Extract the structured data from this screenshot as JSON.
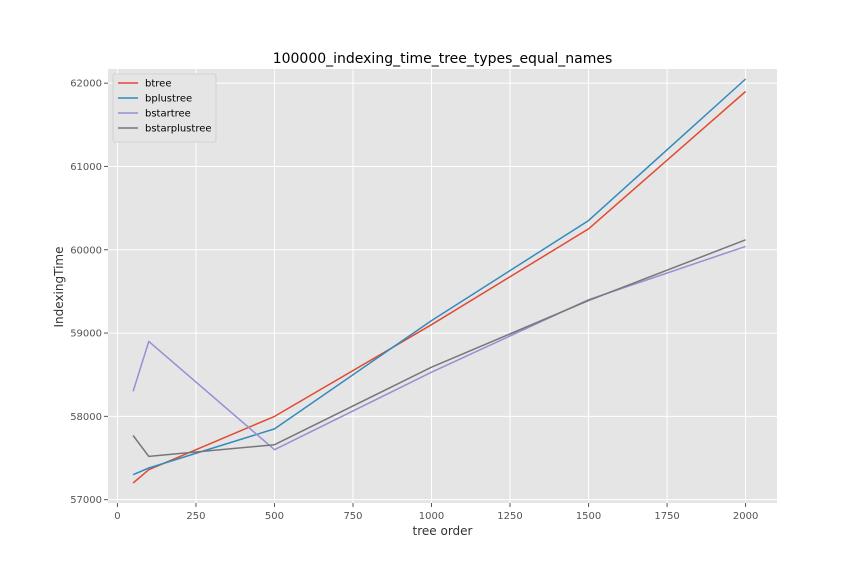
{
  "chart_data": {
    "type": "line",
    "title": "100000_indexing_time_tree_types_equal_names",
    "xlabel": "tree order",
    "ylabel": "IndexingTime",
    "xlim": [
      -30,
      2100
    ],
    "ylim": [
      56960,
      62170
    ],
    "xticks": [
      0,
      250,
      500,
      750,
      1000,
      1250,
      1500,
      1750,
      2000
    ],
    "yticks": [
      57000,
      58000,
      59000,
      60000,
      61000,
      62000
    ],
    "grid": true,
    "legend_position": "upper-left",
    "series": [
      {
        "name": "btree",
        "color": "#E24A33",
        "x": [
          50,
          100,
          500,
          1000,
          1500,
          2000
        ],
        "y": [
          57200,
          57360,
          58000,
          59100,
          60250,
          61900
        ]
      },
      {
        "name": "bplustree",
        "color": "#348ABD",
        "x": [
          50,
          100,
          500,
          1000,
          1500,
          2000
        ],
        "y": [
          57300,
          57380,
          57850,
          59150,
          60350,
          62050
        ]
      },
      {
        "name": "bstartree",
        "color": "#988ED5",
        "x": [
          50,
          100,
          500,
          1000,
          1500,
          2000
        ],
        "y": [
          58300,
          58900,
          57600,
          58530,
          59400,
          60040
        ]
      },
      {
        "name": "bstarplustree",
        "color": "#777777",
        "x": [
          50,
          100,
          500,
          1000,
          1500,
          2000
        ],
        "y": [
          57770,
          57520,
          57660,
          58590,
          59390,
          60120
        ]
      }
    ]
  }
}
